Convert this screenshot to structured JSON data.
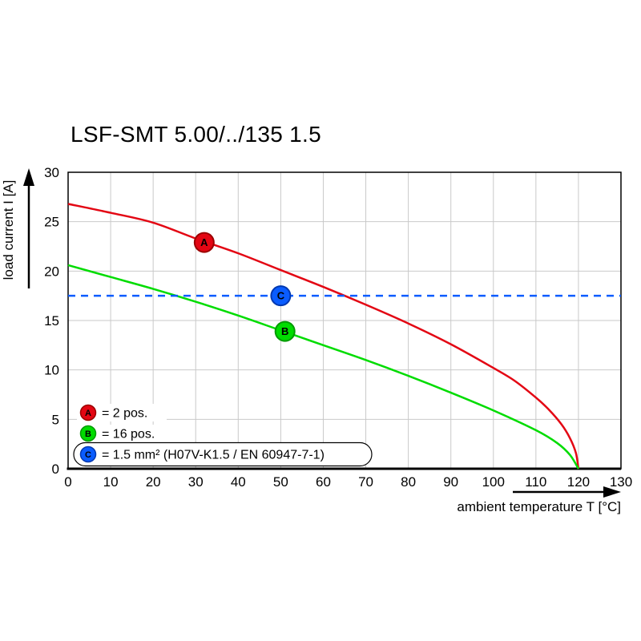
{
  "chart_data": {
    "type": "line",
    "title": "LSF-SMT 5.00/../135 1.5",
    "xlabel": "ambient temperature T [°C]",
    "ylabel": "load current I [A]",
    "xlim": [
      0,
      130
    ],
    "ylim": [
      0,
      30
    ],
    "xticks": [
      0,
      10,
      20,
      30,
      40,
      50,
      60,
      70,
      80,
      90,
      100,
      110,
      120,
      130
    ],
    "yticks": [
      0,
      5,
      10,
      15,
      20,
      25,
      30
    ],
    "grid": true,
    "grid_color": "#c9c9c9",
    "legend_position": "lower-left-inside",
    "series": [
      {
        "name": "A",
        "legend_label": "= 2 pos.",
        "color": "#e30613",
        "stroke": "#9b0000",
        "style": "solid",
        "points": [
          [
            0,
            26.8
          ],
          [
            10,
            25.9
          ],
          [
            20,
            24.9
          ],
          [
            30,
            23.3
          ],
          [
            40,
            21.8
          ],
          [
            50,
            20.1
          ],
          [
            60,
            18.4
          ],
          [
            70,
            16.6
          ],
          [
            80,
            14.7
          ],
          [
            90,
            12.6
          ],
          [
            100,
            10.2
          ],
          [
            105,
            8.9
          ],
          [
            110,
            7.2
          ],
          [
            113,
            6
          ],
          [
            116,
            4.5
          ],
          [
            118,
            3.1
          ],
          [
            119.4,
            1.6
          ],
          [
            120,
            0
          ]
        ],
        "marker": [
          32,
          22.9
        ]
      },
      {
        "name": "B",
        "legend_label": "= 16 pos.",
        "color": "#00dc00",
        "stroke": "#009a00",
        "style": "solid",
        "points": [
          [
            0,
            20.6
          ],
          [
            10,
            19.4
          ],
          [
            20,
            18.2
          ],
          [
            30,
            16.9
          ],
          [
            40,
            15.5
          ],
          [
            50,
            14
          ],
          [
            60,
            12.5
          ],
          [
            70,
            11
          ],
          [
            80,
            9.4
          ],
          [
            90,
            7.7
          ],
          [
            100,
            5.9
          ],
          [
            110,
            3.9
          ],
          [
            115,
            2.6
          ],
          [
            118,
            1.4
          ],
          [
            120,
            0
          ]
        ],
        "marker": [
          51,
          13.9
        ]
      },
      {
        "name": "C",
        "legend_label": "= 1.5 mm² (H07V-K1.5 / EN 60947-7-1)",
        "color": "#0a5cff",
        "stroke": "#0038b0",
        "style": "dashed",
        "points": [
          [
            0,
            17.5
          ],
          [
            130,
            17.5
          ]
        ],
        "marker": [
          50,
          17.5
        ]
      }
    ],
    "legend": [
      {
        "name": "A",
        "label": "= 2 pos.",
        "color": "#e30613",
        "stroke": "#9b0000",
        "boxed": false
      },
      {
        "name": "B",
        "label": "= 16 pos.",
        "color": "#00dc00",
        "stroke": "#009a00",
        "boxed": false
      },
      {
        "name": "C",
        "label": "= 1.5 mm² (H07V-K1.5 / EN 60947-7-1)",
        "color": "#0a5cff",
        "stroke": "#0038b0",
        "boxed": true
      }
    ]
  }
}
